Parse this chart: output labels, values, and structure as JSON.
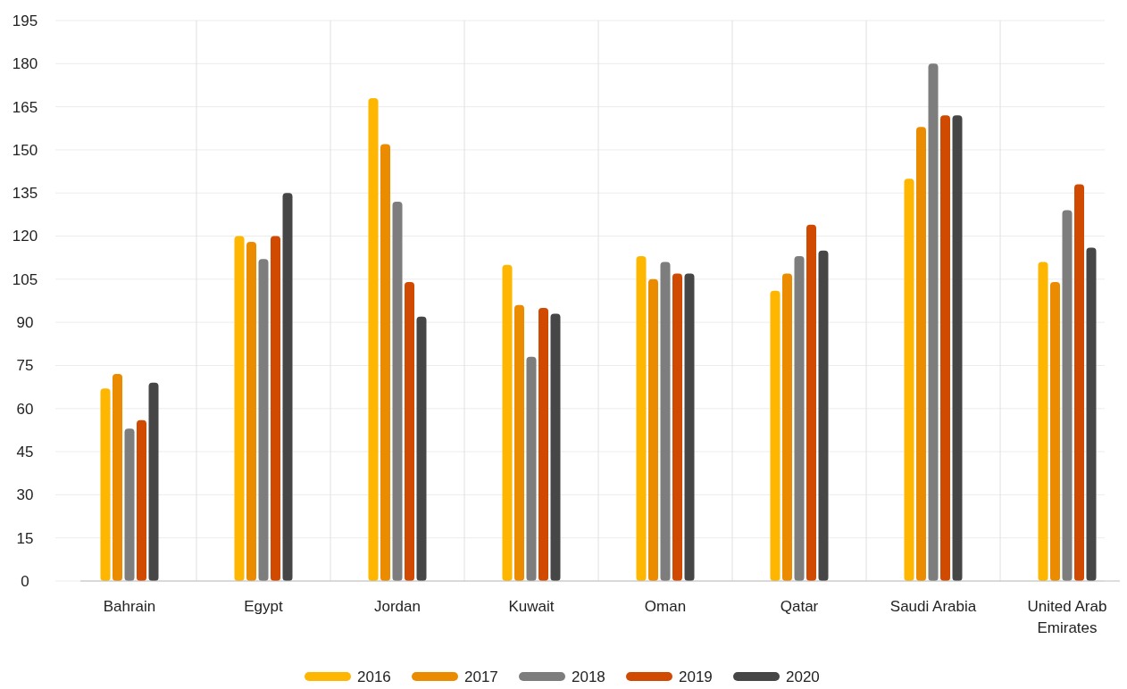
{
  "chart_data": {
    "type": "bar",
    "categories": [
      "Bahrain",
      "Egypt",
      "Jordan",
      "Kuwait",
      "Oman",
      "Qatar",
      "Saudi Arabia",
      "United Arab Emirates"
    ],
    "series": [
      {
        "name": "2016",
        "color": "#ffb600",
        "values": [
          67,
          120,
          168,
          110,
          113,
          101,
          140,
          111
        ]
      },
      {
        "name": "2017",
        "color": "#eb8c00",
        "values": [
          72,
          118,
          152,
          96,
          105,
          107,
          158,
          104
        ]
      },
      {
        "name": "2018",
        "color": "#7d7d7d",
        "values": [
          53,
          112,
          132,
          78,
          111,
          113,
          180,
          129
        ]
      },
      {
        "name": "2019",
        "color": "#d04a02",
        "values": [
          56,
          120,
          104,
          95,
          107,
          124,
          162,
          138
        ]
      },
      {
        "name": "2020",
        "color": "#464646",
        "values": [
          69,
          135,
          92,
          93,
          107,
          115,
          162,
          116
        ]
      }
    ],
    "ylim": [
      0,
      195
    ],
    "yticks": [
      0,
      15,
      30,
      45,
      60,
      75,
      90,
      105,
      120,
      135,
      150,
      165,
      180,
      195
    ],
    "grid": true,
    "legend": "bottom"
  }
}
